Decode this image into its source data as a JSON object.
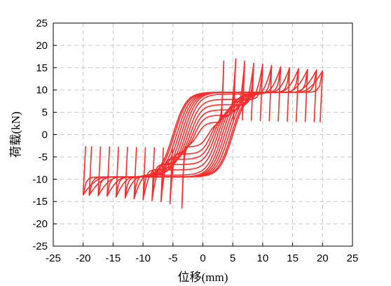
{
  "chart_data": {
    "type": "line",
    "title": "",
    "xlabel": "位移(mm)",
    "ylabel": "荷载(kN)",
    "xlim": [
      -25,
      25
    ],
    "ylim": [
      -25,
      25
    ],
    "xticks": [
      -25,
      -20,
      -15,
      -10,
      -5,
      0,
      5,
      10,
      15,
      20,
      25
    ],
    "yticks": [
      -25,
      -20,
      -15,
      -10,
      -5,
      0,
      5,
      10,
      15,
      20,
      25
    ],
    "xtick_labels": [
      "-25",
      "-20",
      "-15",
      "-10",
      "-5",
      "0",
      "5",
      "10",
      "15",
      "20",
      "25"
    ],
    "ytick_labels": [
      "-25",
      "-20",
      "-15",
      "-10",
      "-5",
      "0",
      "5",
      "10",
      "15",
      "20",
      "25"
    ],
    "grid": true,
    "line_color": "#ff2a2a",
    "grid_color": "#c8c8c8",
    "series": [
      {
        "values": [
          {
            "amplitude": 3.5,
            "peak_pos": 16.5,
            "peak_neg": -16.5
          },
          {
            "amplitude": 5.5,
            "peak_pos": 17.0,
            "peak_neg": -15.5
          },
          {
            "amplitude": 7.0,
            "peak_pos": 16.5,
            "peak_neg": -15.0
          },
          {
            "amplitude": 8.5,
            "peak_pos": 16.0,
            "peak_neg": -14.8
          },
          {
            "amplitude": 10.0,
            "peak_pos": 15.8,
            "peak_neg": -14.6
          },
          {
            "amplitude": 11.5,
            "peak_pos": 15.5,
            "peak_neg": -14.4
          },
          {
            "amplitude": 13.0,
            "peak_pos": 15.2,
            "peak_neg": -14.2
          },
          {
            "amplitude": 14.5,
            "peak_pos": 15.0,
            "peak_neg": -14.0
          },
          {
            "amplitude": 16.0,
            "peak_pos": 14.8,
            "peak_neg": -13.8
          },
          {
            "amplitude": 17.5,
            "peak_pos": 14.6,
            "peak_neg": -13.7
          },
          {
            "amplitude": 19.0,
            "peak_pos": 14.5,
            "peak_neg": -13.6
          },
          {
            "amplitude": 20.0,
            "peak_pos": 14.3,
            "peak_neg": -13.5
          }
        ]
      }
    ]
  }
}
